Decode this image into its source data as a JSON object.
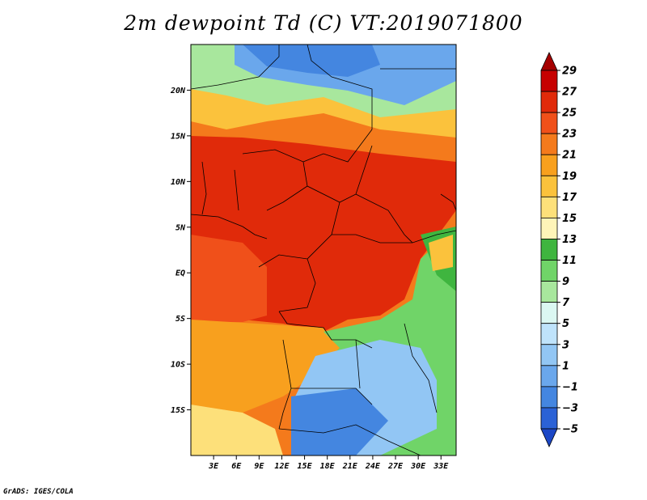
{
  "title": "2m dewpoint Td (C) VT:2019071800",
  "credit": "GrADS: IGES/COLA",
  "map": {
    "variable": "2m dewpoint",
    "units": "C",
    "valid_time": "2019071800",
    "lon_range": [
      0,
      35
    ],
    "lat_range": [
      -20,
      25
    ],
    "x_ticks": [
      "3E",
      "6E",
      "9E",
      "12E",
      "15E",
      "18E",
      "21E",
      "24E",
      "27E",
      "30E",
      "33E"
    ],
    "x_tick_values": [
      3,
      6,
      9,
      12,
      15,
      18,
      21,
      24,
      27,
      30,
      33
    ],
    "y_ticks": [
      "20N",
      "15N",
      "10N",
      "5N",
      "EQ",
      "5S",
      "10S",
      "15S"
    ],
    "y_tick_values": [
      20,
      15,
      10,
      5,
      0,
      -5,
      -10,
      -15
    ]
  },
  "colorbar": {
    "labels": [
      "29",
      "27",
      "25",
      "23",
      "21",
      "19",
      "17",
      "15",
      "13",
      "11",
      "9",
      "7",
      "5",
      "3",
      "1",
      "−1",
      "−3",
      "−5"
    ],
    "colors": [
      "#a50000",
      "#c60000",
      "#e02a0a",
      "#f0501a",
      "#f47a1c",
      "#f8a01e",
      "#fbc23c",
      "#fde07a",
      "#fef4b8",
      "#3fb53f",
      "#70d468",
      "#a8e79d",
      "#dbf7f2",
      "#bfe3fb",
      "#92c6f4",
      "#6aa7ec",
      "#4486e0",
      "#2b62d6",
      "#1c47c6"
    ]
  }
}
